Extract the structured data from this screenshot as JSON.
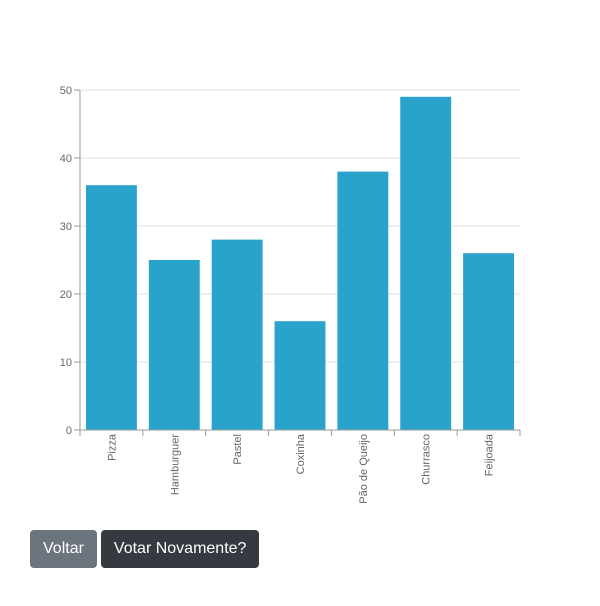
{
  "chart_data": {
    "type": "bar",
    "categories": [
      "Pizza",
      "Hamburguer",
      "Pastel",
      "Coxinha",
      "Pão de Queijo",
      "Churrasco",
      "Feijoada"
    ],
    "values": [
      36,
      25,
      28,
      16,
      38,
      49,
      26
    ],
    "ylim": [
      0,
      50
    ],
    "yticks": [
      0,
      10,
      20,
      30,
      40,
      50
    ],
    "grid": true,
    "bar_color": "#2aa3cc",
    "axis_color": "#999999",
    "grid_color": "#e0e0e0",
    "tick_label_color": "#666666"
  },
  "actions": {
    "back_label": "Voltar",
    "vote_again_label": "Votar Novamente?"
  }
}
